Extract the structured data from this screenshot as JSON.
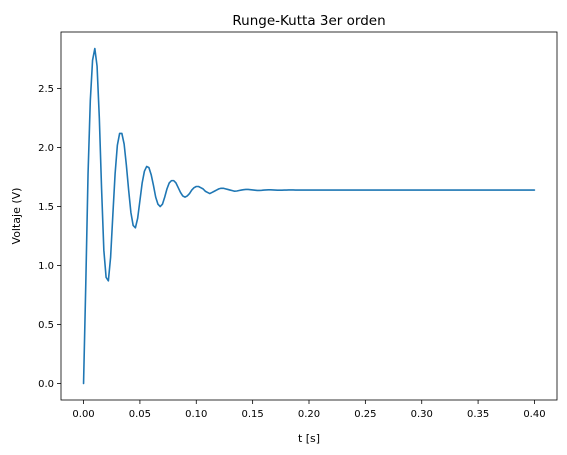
{
  "chart_data": {
    "type": "line",
    "title": "Runge-Kutta 3er orden",
    "xlabel": "t [s]",
    "ylabel": "Voltaje (V)",
    "xlim": [
      -0.02,
      0.42
    ],
    "ylim": [
      -0.14,
      2.98
    ],
    "grid": false,
    "x_ticks": [
      0.0,
      0.05,
      0.1,
      0.15,
      0.2,
      0.25,
      0.3,
      0.35,
      0.4
    ],
    "x_tick_labels": [
      "0.00",
      "0.05",
      "0.10",
      "0.15",
      "0.20",
      "0.25",
      "0.30",
      "0.35",
      "0.40"
    ],
    "y_ticks": [
      0.0,
      0.5,
      1.0,
      1.5,
      2.0,
      2.5
    ],
    "y_tick_labels": [
      "0.0",
      "0.5",
      "1.0",
      "1.5",
      "2.0",
      "2.5"
    ],
    "series": [
      {
        "color": "#1f77b4",
        "x": [
          0.0,
          0.002,
          0.004,
          0.006,
          0.008,
          0.01,
          0.012,
          0.014,
          0.016,
          0.018,
          0.02,
          0.022,
          0.024,
          0.026,
          0.028,
          0.03,
          0.032,
          0.034,
          0.036,
          0.038,
          0.04,
          0.042,
          0.044,
          0.046,
          0.048,
          0.05,
          0.052,
          0.054,
          0.056,
          0.058,
          0.06,
          0.062,
          0.064,
          0.066,
          0.068,
          0.07,
          0.072,
          0.074,
          0.076,
          0.078,
          0.08,
          0.082,
          0.084,
          0.086,
          0.088,
          0.09,
          0.092,
          0.094,
          0.096,
          0.098,
          0.1,
          0.102,
          0.104,
          0.106,
          0.108,
          0.11,
          0.112,
          0.114,
          0.116,
          0.118,
          0.12,
          0.122,
          0.124,
          0.126,
          0.128,
          0.13,
          0.132,
          0.134,
          0.136,
          0.138,
          0.14,
          0.142,
          0.144,
          0.146,
          0.148,
          0.15,
          0.152,
          0.154,
          0.156,
          0.158,
          0.16,
          0.162,
          0.164,
          0.166,
          0.168,
          0.17,
          0.172,
          0.174,
          0.176,
          0.178,
          0.18,
          0.182,
          0.184,
          0.186,
          0.188,
          0.19,
          0.192,
          0.194,
          0.196,
          0.198,
          0.2,
          0.21,
          0.22,
          0.23,
          0.24,
          0.25,
          0.275,
          0.3,
          0.325,
          0.35,
          0.375,
          0.4
        ],
        "y": [
          0.0,
          0.85,
          1.78,
          2.4,
          2.74,
          2.84,
          2.69,
          2.25,
          1.65,
          1.13,
          0.9,
          0.87,
          1.07,
          1.43,
          1.78,
          2.02,
          2.12,
          2.12,
          2.03,
          1.85,
          1.64,
          1.45,
          1.34,
          1.32,
          1.4,
          1.55,
          1.7,
          1.8,
          1.84,
          1.83,
          1.77,
          1.68,
          1.58,
          1.52,
          1.5,
          1.52,
          1.58,
          1.65,
          1.7,
          1.72,
          1.72,
          1.7,
          1.66,
          1.62,
          1.59,
          1.58,
          1.59,
          1.61,
          1.64,
          1.66,
          1.67,
          1.67,
          1.66,
          1.65,
          1.63,
          1.62,
          1.61,
          1.62,
          1.63,
          1.64,
          1.65,
          1.655,
          1.655,
          1.65,
          1.645,
          1.64,
          1.635,
          1.63,
          1.632,
          1.636,
          1.64,
          1.643,
          1.645,
          1.645,
          1.643,
          1.641,
          1.639,
          1.637,
          1.637,
          1.638,
          1.64,
          1.641,
          1.642,
          1.642,
          1.641,
          1.64,
          1.639,
          1.639,
          1.639,
          1.64,
          1.64,
          1.641,
          1.641,
          1.641,
          1.64,
          1.64,
          1.64,
          1.64,
          1.64,
          1.64,
          1.64,
          1.64,
          1.64,
          1.64,
          1.64,
          1.64,
          1.64,
          1.64,
          1.64,
          1.64,
          1.64,
          1.64
        ]
      }
    ]
  }
}
